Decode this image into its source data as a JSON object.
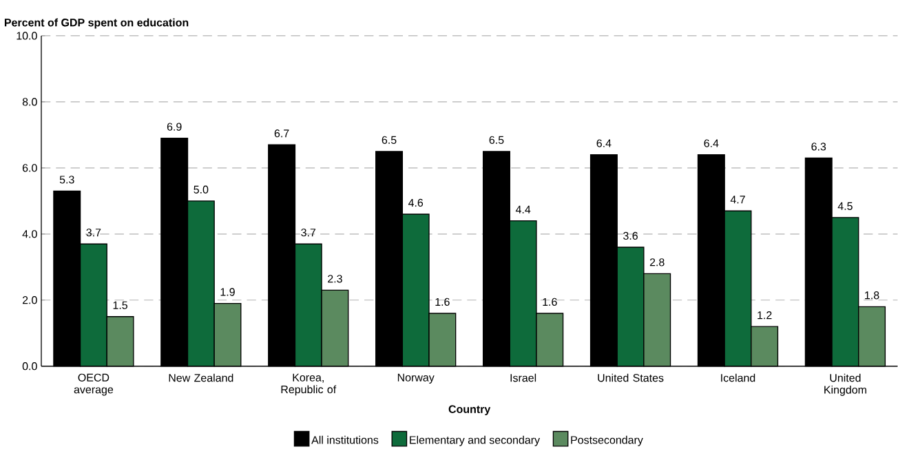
{
  "chart_data": {
    "type": "bar",
    "ylabel": "Percent of GDP spent on education",
    "xlabel": "Country",
    "categories": [
      "OECD average",
      "New Zealand",
      "Korea, Republic of",
      "Norway",
      "Israel",
      "United States",
      "Iceland",
      "United Kingdom"
    ],
    "series": [
      {
        "name": "All institutions",
        "color": "#000000",
        "values": [
          5.3,
          6.9,
          6.7,
          6.5,
          6.5,
          6.4,
          6.4,
          6.3
        ],
        "value_labels": [
          "5.3",
          "6.9",
          "6.7",
          "6.5",
          "6.5",
          "6.4",
          "6.4",
          "6.3"
        ]
      },
      {
        "name": "Elementary and secondary",
        "color": "#0e6b3b",
        "values": [
          3.7,
          5.0,
          3.7,
          4.6,
          4.4,
          3.6,
          4.7,
          4.5
        ],
        "value_labels": [
          "3.7",
          "5.0",
          "3.7",
          "4.6",
          "4.4",
          "3.6",
          "4.7",
          "4.5"
        ]
      },
      {
        "name": "Postsecondary",
        "color": "#5b8a5f",
        "values": [
          1.5,
          1.9,
          2.3,
          1.6,
          1.6,
          2.8,
          1.2,
          1.8
        ],
        "value_labels": [
          "1.5",
          "1.9",
          "2.3",
          "1.6",
          "1.6",
          "2.8",
          "1.2",
          "1.8"
        ]
      }
    ],
    "ylim": [
      0,
      10
    ],
    "yticks": [
      {
        "value": 0,
        "label": "0.0"
      },
      {
        "value": 2,
        "label": "2.0"
      },
      {
        "value": 4,
        "label": "4.0"
      },
      {
        "value": 6,
        "label": "6.0"
      },
      {
        "value": 8,
        "label": "8.0"
      },
      {
        "value": 10,
        "label": "10.0"
      }
    ],
    "grid": "y",
    "legend": "bottom"
  }
}
